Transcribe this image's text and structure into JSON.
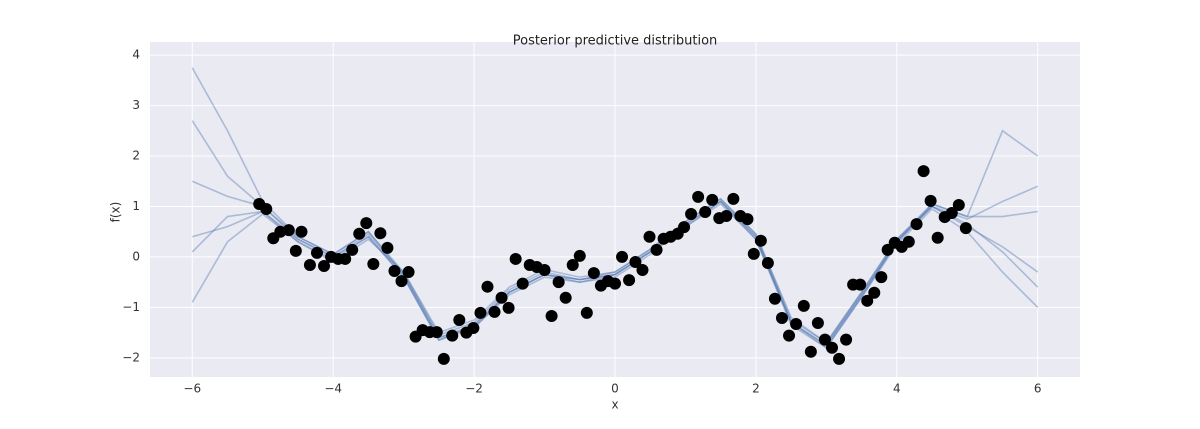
{
  "chart_data": {
    "type": "scatter",
    "title": "Posterior predictive distribution",
    "xlabel": "x",
    "ylabel": "f(x)",
    "xlim": [
      -6.6,
      6.6
    ],
    "ylim": [
      -2.38,
      4.26
    ],
    "xticks": [
      {
        "value": -6,
        "label": "−6"
      },
      {
        "value": -4,
        "label": "−4"
      },
      {
        "value": -2,
        "label": "−2"
      },
      0,
      2,
      4,
      6
    ],
    "yticks": [
      {
        "value": -2,
        "label": "−2"
      },
      {
        "value": -1,
        "label": "−1"
      },
      0,
      1,
      2,
      3,
      4
    ],
    "grid": true,
    "series": [
      {
        "type": "line",
        "color": "#4c72b0",
        "x": [
          -6,
          -5.5,
          -5,
          -4.5,
          -4,
          -3.5,
          -3,
          -2.5,
          -2,
          -1.5,
          -1,
          -0.5,
          0,
          0.5,
          1,
          1.5,
          2,
          2.5,
          3,
          3.5,
          4,
          4.5,
          5,
          5.5,
          6
        ],
        "values": [
          3.75,
          2.5,
          1.1,
          0.4,
          0.05,
          0.5,
          -0.3,
          -1.55,
          -1.3,
          -0.65,
          -0.3,
          -0.45,
          -0.3,
          0.15,
          0.7,
          1.15,
          0.45,
          -1.25,
          -1.7,
          -0.7,
          0.35,
          1.05,
          0.8,
          2.5,
          2.0
        ]
      },
      {
        "type": "line",
        "color": "#4c72b0",
        "x": [
          -6,
          -5.5,
          -5,
          -4.5,
          -4,
          -3.5,
          -3,
          -2.5,
          -2,
          -1.5,
          -1,
          -0.5,
          0,
          0.5,
          1,
          1.5,
          2,
          2.5,
          3,
          3.5,
          4,
          4.5,
          5,
          5.5,
          6
        ],
        "values": [
          -0.9,
          0.3,
          0.85,
          0.3,
          -0.05,
          0.4,
          -0.4,
          -1.65,
          -1.4,
          -0.75,
          -0.4,
          -0.5,
          -0.4,
          0.05,
          0.6,
          1.05,
          0.35,
          -1.35,
          -1.8,
          -0.8,
          0.25,
          0.95,
          0.5,
          -0.3,
          -1.0
        ]
      },
      {
        "type": "line",
        "color": "#4c72b0",
        "x": [
          -6,
          -5.5,
          -5,
          -4.5,
          -4,
          -3.5,
          -3,
          -2.5,
          -2,
          -1.5,
          -1,
          -0.5,
          0,
          0.5,
          1,
          1.5,
          2,
          2.5,
          3,
          3.5,
          4,
          4.5,
          5,
          5.5,
          6
        ],
        "values": [
          2.7,
          1.6,
          1.0,
          0.35,
          0.0,
          0.45,
          -0.35,
          -1.6,
          -1.35,
          -0.7,
          -0.35,
          -0.45,
          -0.35,
          0.1,
          0.65,
          1.1,
          0.4,
          -1.3,
          -1.75,
          -0.75,
          0.3,
          1.0,
          0.75,
          1.1,
          1.4
        ]
      },
      {
        "type": "line",
        "color": "#4c72b0",
        "x": [
          -6,
          -5.5,
          -5,
          -4.5,
          -4,
          -3.5,
          -3,
          -2.5,
          -2,
          -1.5,
          -1,
          -0.5,
          0,
          0.5,
          1,
          1.5,
          2,
          2.5,
          3,
          3.5,
          4,
          4.5,
          5,
          5.5,
          6
        ],
        "values": [
          0.1,
          0.8,
          0.9,
          0.3,
          -0.1,
          0.35,
          -0.3,
          -1.5,
          -1.25,
          -0.6,
          -0.25,
          -0.4,
          -0.3,
          0.15,
          0.7,
          1.15,
          0.45,
          -1.2,
          -1.7,
          -0.7,
          0.35,
          1.0,
          0.6,
          0.2,
          -0.3
        ]
      },
      {
        "type": "line",
        "color": "#4c72b0",
        "x": [
          -6,
          -5.5,
          -5,
          -4.5,
          -4,
          -3.5,
          -3,
          -2.5,
          -2,
          -1.5,
          -1,
          -0.5,
          0,
          0.5,
          1,
          1.5,
          2,
          2.5,
          3,
          3.5,
          4,
          4.5,
          5,
          5.5,
          6
        ],
        "values": [
          1.5,
          1.2,
          1.0,
          0.4,
          0.05,
          0.5,
          -0.35,
          -1.6,
          -1.4,
          -0.7,
          -0.35,
          -0.5,
          -0.35,
          0.1,
          0.65,
          1.1,
          0.4,
          -1.3,
          -1.75,
          -0.75,
          0.3,
          1.05,
          0.8,
          0.8,
          0.9
        ]
      },
      {
        "type": "line",
        "color": "#4c72b0",
        "x": [
          -6,
          -5.5,
          -5,
          -4.5,
          -4,
          -3.5,
          -3,
          -2.5,
          -2,
          -1.5,
          -1,
          -0.5,
          0,
          0.5,
          1,
          1.5,
          2,
          2.5,
          3,
          3.5,
          4,
          4.5,
          5,
          5.5,
          6
        ],
        "values": [
          0.4,
          0.6,
          0.9,
          0.35,
          0.0,
          0.4,
          -0.4,
          -1.65,
          -1.35,
          -0.7,
          -0.35,
          -0.45,
          -0.35,
          0.1,
          0.6,
          1.1,
          0.35,
          -1.3,
          -1.8,
          -0.8,
          0.3,
          1.0,
          0.65,
          0.1,
          -0.6
        ]
      },
      {
        "type": "scatter",
        "color": "#000000",
        "x": [
          -5.05,
          -4.95,
          -4.85,
          -4.75,
          -4.63,
          -4.53,
          -4.45,
          -4.33,
          -4.23,
          -4.13,
          -4.03,
          -3.93,
          -3.83,
          -3.73,
          -3.63,
          -3.53,
          -3.43,
          -3.33,
          -3.23,
          -3.13,
          -3.03,
          -2.93,
          -2.83,
          -2.73,
          -2.63,
          -2.53,
          -2.43,
          -2.31,
          -2.21,
          -2.11,
          -2.01,
          -1.91,
          -1.81,
          -1.71,
          -1.61,
          -1.51,
          -1.41,
          -1.31,
          -1.21,
          -1.11,
          -1.0,
          -0.9,
          -0.8,
          -0.7,
          -0.6,
          -0.5,
          -0.4,
          -0.3,
          -0.2,
          -0.1,
          0,
          0.1,
          0.2,
          0.29,
          0.39,
          0.49,
          0.59,
          0.69,
          0.79,
          0.89,
          0.98,
          1.08,
          1.18,
          1.28,
          1.38,
          1.48,
          1.58,
          1.68,
          1.78,
          1.88,
          1.97,
          2.07,
          2.17,
          2.27,
          2.37,
          2.47,
          2.57,
          2.68,
          2.78,
          2.88,
          2.98,
          3.08,
          3.18,
          3.28,
          3.38,
          3.48,
          3.58,
          3.68,
          3.78,
          3.87,
          3.97,
          4.07,
          4.17,
          4.28,
          4.38,
          4.48,
          4.58,
          4.68,
          4.78,
          4.88,
          4.98
        ],
        "values": [
          1.05,
          0.95,
          0.37,
          0.5,
          0.53,
          0.12,
          0.5,
          -0.16,
          0.08,
          -0.18,
          0,
          -0.04,
          -0.04,
          0.14,
          0.46,
          0.67,
          -0.14,
          0.47,
          0.18,
          -0.28,
          -0.48,
          -0.3,
          -1.58,
          -1.45,
          -1.49,
          -1.49,
          -2.02,
          -1.56,
          -1.25,
          -1.5,
          -1.41,
          -1.11,
          -0.59,
          -1.09,
          -0.81,
          -1.01,
          -0.04,
          -0.53,
          -0.16,
          -0.2,
          -0.26,
          -1.17,
          -0.5,
          -0.81,
          -0.16,
          0.02,
          -1.11,
          -0.32,
          -0.57,
          -0.48,
          -0.53,
          0,
          -0.46,
          -0.1,
          -0.26,
          0.4,
          0.14,
          0.36,
          0.4,
          0.46,
          0.59,
          0.85,
          1.19,
          0.89,
          1.13,
          0.77,
          0.81,
          1.15,
          0.81,
          0.75,
          0.06,
          0.32,
          -0.12,
          -0.83,
          -1.21,
          -1.56,
          -1.33,
          -0.97,
          -1.88,
          -1.31,
          -1.64,
          -1.8,
          -2.02,
          -1.64,
          -0.55,
          -0.55,
          -0.87,
          -0.71,
          -0.4,
          0.14,
          0.28,
          0.2,
          0.3,
          0.65,
          1.7,
          1.11,
          0.38,
          0.79,
          0.87,
          1.03,
          0.57
        ]
      }
    ]
  }
}
